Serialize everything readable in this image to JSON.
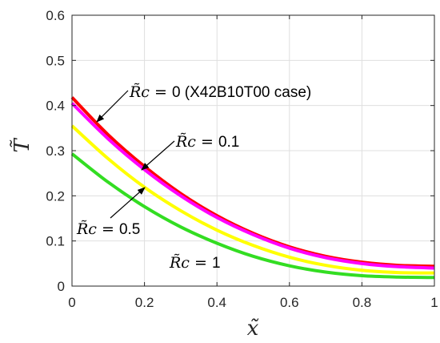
{
  "chart_data": {
    "type": "line",
    "xlabel": "x̃",
    "ylabel": "T̃",
    "xlim": [
      0,
      1
    ],
    "ylim": [
      0,
      0.6
    ],
    "xticks": [
      "0",
      "0.2",
      "0.4",
      "0.6",
      "0.8",
      "1"
    ],
    "yticks": [
      "0",
      "0.1",
      "0.2",
      "0.3",
      "0.4",
      "0.5",
      "0.6"
    ],
    "grid": true,
    "series": [
      {
        "color": "#ff0000",
        "x": [
          0,
          0.1,
          0.2,
          0.3,
          0.4,
          0.5,
          0.6,
          0.7,
          0.8,
          0.9,
          1
        ],
        "y": [
          0.418,
          0.335,
          0.265,
          0.205,
          0.156,
          0.117,
          0.087,
          0.066,
          0.053,
          0.046,
          0.044
        ]
      },
      {
        "color": "#ff00ff",
        "x": [
          0,
          0.1,
          0.2,
          0.3,
          0.4,
          0.5,
          0.6,
          0.7,
          0.8,
          0.9,
          1
        ],
        "y": [
          0.405,
          0.326,
          0.258,
          0.2,
          0.152,
          0.114,
          0.084,
          0.063,
          0.05,
          0.043,
          0.04
        ]
      },
      {
        "color": "#ffff00",
        "x": [
          0,
          0.1,
          0.2,
          0.3,
          0.4,
          0.5,
          0.6,
          0.7,
          0.8,
          0.9,
          1
        ],
        "y": [
          0.355,
          0.282,
          0.219,
          0.167,
          0.124,
          0.09,
          0.064,
          0.046,
          0.035,
          0.03,
          0.029
        ]
      },
      {
        "color": "#33dd22",
        "x": [
          0,
          0.1,
          0.2,
          0.3,
          0.4,
          0.5,
          0.6,
          0.7,
          0.8,
          0.9,
          1
        ],
        "y": [
          0.293,
          0.23,
          0.176,
          0.131,
          0.095,
          0.066,
          0.045,
          0.031,
          0.023,
          0.02,
          0.019
        ]
      }
    ],
    "annotations": [
      {
        "math": "R̃c = ",
        "text": "0 (X42B10T00 case)"
      },
      {
        "math": "R̃c = ",
        "text": "0.1"
      },
      {
        "math": "R̃c = ",
        "text": "0.5"
      },
      {
        "math": "R̃c = ",
        "text": "1"
      }
    ]
  }
}
